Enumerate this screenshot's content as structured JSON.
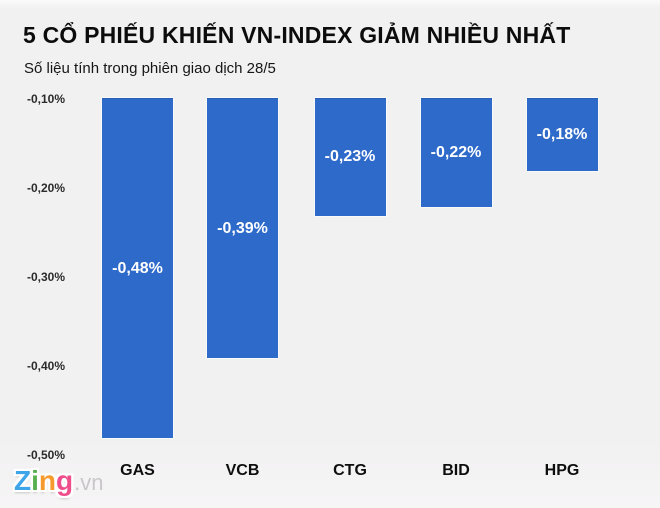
{
  "header": {
    "title": "5 CỔ PHIẾU KHIẾN VN-INDEX GIẢM NHIỀU NHẤT",
    "subtitle": "Số liệu tính trong phiên giao dịch 28/5"
  },
  "chart_data": {
    "type": "bar",
    "title": "5 CỔ PHIẾU KHIẾN VN-INDEX GIẢM NHIỀU NHẤT",
    "subtitle": "Số liệu tính trong phiên giao dịch 28/5",
    "categories": [
      "GAS",
      "VCB",
      "CTG",
      "BID",
      "HPG"
    ],
    "values": [
      -0.48,
      -0.39,
      -0.23,
      -0.22,
      -0.18
    ],
    "value_labels": [
      "-0,48%",
      "-0,39%",
      "-0,23%",
      "-0,22%",
      "-0,18%"
    ],
    "ytick_labels": [
      "-0,10%",
      "-0,20%",
      "-0,30%",
      "-0,40%",
      "-0,50%"
    ],
    "ytick_values": [
      -0.1,
      -0.2,
      -0.3,
      -0.4,
      -0.5
    ],
    "ylim": [
      -0.5,
      -0.1
    ],
    "baseline": -0.1,
    "xlabel": "",
    "ylabel": "",
    "grid": false,
    "legend_position": "none",
    "bar_color": "#2e6ac9",
    "value_label_color": "#ffffff",
    "orientation": "vertical-hanging"
  },
  "branding": {
    "logo_letters": [
      {
        "char": "Z",
        "color": "#3fa5e9"
      },
      {
        "char": "i",
        "color": "#56b04e"
      },
      {
        "char": "n",
        "color": "#f69a2d"
      },
      {
        "char": "g",
        "color": "#ee4e8b"
      }
    ],
    "logo_suffix": ".vn"
  },
  "colors": {
    "background": "#f2f1f2",
    "bar": "#2e6ac9",
    "title_text": "#0c0c0c",
    "axis_text": "#2b2b2b"
  }
}
